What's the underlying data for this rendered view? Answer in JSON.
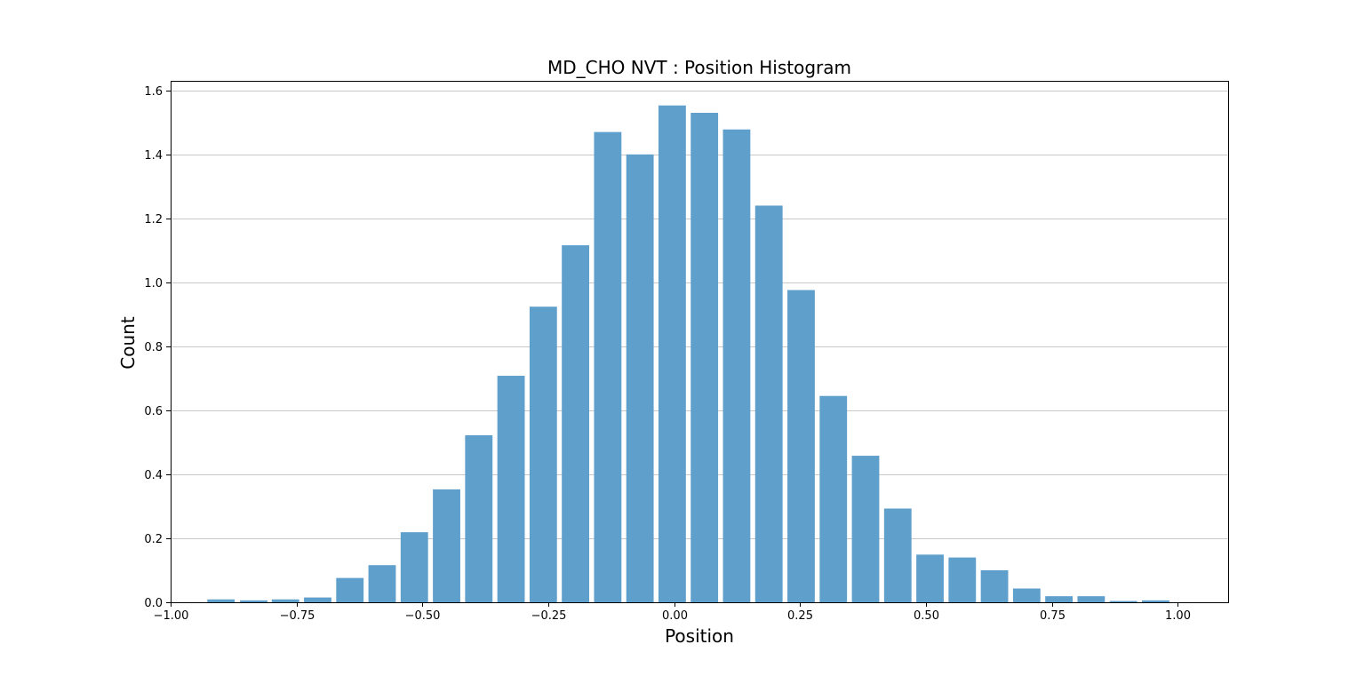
{
  "chart_data": {
    "type": "bar",
    "title": "MD_CHO NVT : Position Histogram",
    "xlabel": "Position",
    "ylabel": "Count",
    "xlim": [
      -1.0,
      1.1
    ],
    "ylim": [
      0.0,
      1.63
    ],
    "grid": "y",
    "bar_color": "#5f9fcc",
    "bin_width": 0.064,
    "bar_fraction": 0.85,
    "x": [
      -0.9,
      -0.835,
      -0.772,
      -0.708,
      -0.644,
      -0.58,
      -0.516,
      -0.452,
      -0.388,
      -0.324,
      -0.26,
      -0.196,
      -0.132,
      -0.068,
      -0.004,
      0.06,
      0.124,
      0.188,
      0.252,
      0.316,
      0.38,
      0.444,
      0.508,
      0.572,
      0.636,
      0.7,
      0.764,
      0.828,
      0.892,
      0.956
    ],
    "values": [
      0.009,
      0.006,
      0.009,
      0.015,
      0.076,
      0.116,
      0.219,
      0.353,
      0.522,
      0.708,
      0.924,
      1.116,
      1.47,
      1.4,
      1.553,
      1.53,
      1.478,
      1.24,
      0.976,
      0.645,
      0.458,
      0.293,
      0.149,
      0.14,
      0.1,
      0.043,
      0.019,
      0.019,
      0.004,
      0.006
    ],
    "x_ticks": [
      -1.0,
      -0.75,
      -0.5,
      -0.25,
      0.0,
      0.25,
      0.5,
      0.75,
      1.0
    ],
    "x_tick_labels": [
      "−1.00",
      "−0.75",
      "−0.50",
      "−0.25",
      "0.00",
      "0.25",
      "0.50",
      "0.75",
      "1.00"
    ],
    "y_ticks": [
      0.0,
      0.2,
      0.4,
      0.6,
      0.8,
      1.0,
      1.2,
      1.4,
      1.6
    ],
    "y_tick_labels": [
      "0.0",
      "0.2",
      "0.4",
      "0.6",
      "0.8",
      "1.0",
      "1.2",
      "1.4",
      "1.6"
    ]
  }
}
